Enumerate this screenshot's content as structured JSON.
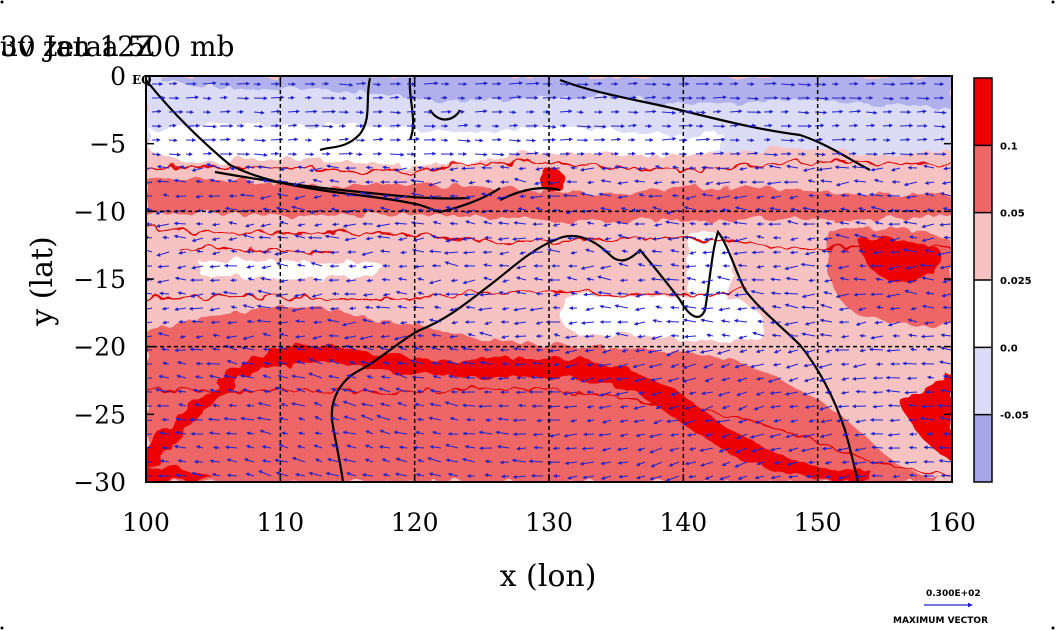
{
  "title_left": "uv zetaa 500 mb",
  "title_right": "30 Jan 12Z",
  "corner_label": "EQ",
  "chart_data": {
    "type": "heatmap",
    "xlabel": "x (lon)",
    "ylabel": "y (lat)",
    "xlim": [
      100,
      160
    ],
    "ylim": [
      -30,
      0
    ],
    "x_ticks": [
      "100",
      "110",
      "120",
      "130",
      "140",
      "150",
      "160"
    ],
    "y_ticks": [
      "0",
      "−5",
      "−10",
      "−15",
      "−20",
      "−25",
      "−30"
    ],
    "grid_lon": [
      110,
      120,
      130,
      140,
      150
    ],
    "grid_lat": [
      -10,
      -20
    ],
    "colorbar": {
      "levels": [
        "0.1",
        "0.05",
        "0.025",
        "0.0",
        "-0.05"
      ],
      "colors": [
        "#ee0000",
        "#ee6666",
        "#f7c2c2",
        "#ffffff",
        "#dcdcf7",
        "#a5a5ea"
      ]
    },
    "vector_key": {
      "value": "0.300E+02",
      "label": "MAXIMUM VECTOR"
    }
  }
}
